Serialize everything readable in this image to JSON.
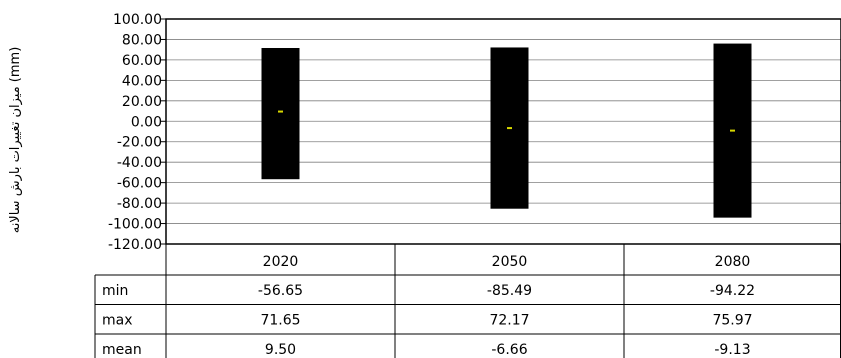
{
  "chart_data": {
    "type": "bar",
    "chart_style": "floating min–max bars with mean markers and data table",
    "ylabel": "میزان تغییرات بارش سالانه (mm)",
    "ylim": [
      -120,
      100
    ],
    "y_ticks": [
      "100.00",
      "80.00",
      "60.00",
      "40.00",
      "20.00",
      "0.00",
      "-20.00",
      "-40.00",
      "-60.00",
      "-80.00",
      "-100.00",
      "-120.00"
    ],
    "y_tick_values": [
      100,
      80,
      60,
      40,
      20,
      0,
      -20,
      -40,
      -60,
      -80,
      -100,
      -120
    ],
    "grid": true,
    "categories": [
      "2020",
      "2050",
      "2080"
    ],
    "series": [
      {
        "name": "min",
        "values": [
          -56.65,
          -85.49,
          -94.22
        ]
      },
      {
        "name": "max",
        "values": [
          71.65,
          72.17,
          75.97
        ]
      },
      {
        "name": "mean",
        "values": [
          9.5,
          -6.66,
          -9.13
        ]
      }
    ],
    "table_rows": [
      {
        "label": "min",
        "cells": [
          "-56.65",
          "-85.49",
          "-94.22"
        ]
      },
      {
        "label": "max",
        "cells": [
          "71.65",
          "72.17",
          "75.97"
        ]
      },
      {
        "label": "mean",
        "cells": [
          "9.50",
          "-6.66",
          "-9.13"
        ]
      }
    ],
    "colors": {
      "bar": "#000000",
      "mean_marker": "#d8d800",
      "grid": "#808080",
      "axis": "#000000"
    }
  }
}
